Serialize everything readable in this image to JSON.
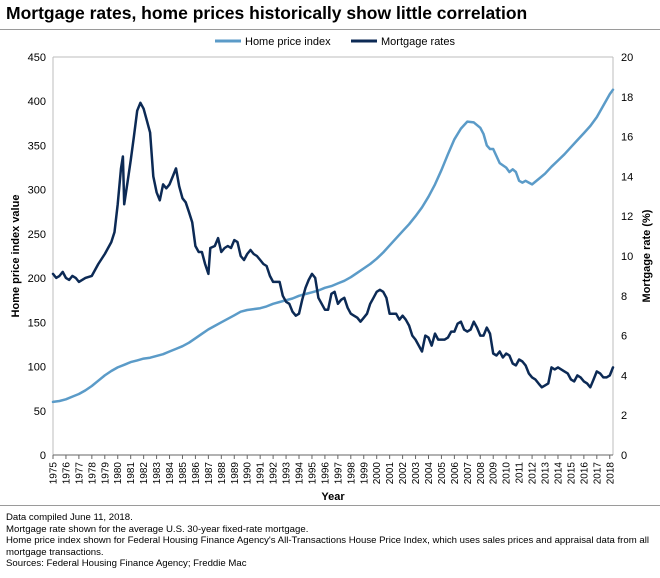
{
  "title": "Mortgage rates, home prices historically show little correlation",
  "notes": [
    "Data compiled June 11, 2018.",
    "Mortgage rate shown for the average U.S. 30-year fixed-rate mortgage.",
    "Home price index shown for Federal Housing Finance Agency's All-Transactions House Price Index, which uses sales prices and appraisal data from all mortgage transactions.",
    "Sources: Federal Housing Finance Agency; Freddie Mac"
  ],
  "colors": {
    "home_price": "#5b9bc8",
    "mortgage": "#0c2a55"
  },
  "chart_data": {
    "type": "line",
    "xlabel": "Year",
    "ylabel_left": "Home price index value",
    "ylabel_right": "Mortgage rate (%)",
    "ylim_left": [
      0,
      450
    ],
    "ylim_right": [
      0,
      20
    ],
    "xlim": [
      1975,
      2018.25
    ],
    "yticks_left": [
      0,
      50,
      100,
      150,
      200,
      250,
      300,
      350,
      400,
      450
    ],
    "yticks_right": [
      0,
      2,
      4,
      6,
      8,
      10,
      12,
      14,
      16,
      18,
      20
    ],
    "xticks": [
      "1975",
      "1976",
      "1977",
      "1978",
      "1979",
      "1980",
      "1981",
      "1982",
      "1983",
      "1984",
      "1985",
      "1986",
      "1987",
      "1988",
      "1989",
      "1990",
      "1991",
      "1992",
      "1993",
      "1994",
      "1995",
      "1996",
      "1997",
      "1998",
      "1999",
      "2000",
      "2001",
      "2002",
      "2003",
      "2004",
      "2005",
      "2006",
      "2007",
      "2008",
      "2009",
      "2010",
      "2011",
      "2012",
      "2013",
      "2014",
      "2015",
      "2016",
      "2017",
      "2018"
    ],
    "legend_position": "top",
    "series": [
      {
        "name": "Home price index",
        "axis": "left",
        "points": [
          [
            1975,
            60
          ],
          [
            1975.5,
            61
          ],
          [
            1976,
            63
          ],
          [
            1976.5,
            66
          ],
          [
            1977,
            69
          ],
          [
            1977.5,
            73
          ],
          [
            1978,
            78
          ],
          [
            1978.5,
            84
          ],
          [
            1979,
            90
          ],
          [
            1979.5,
            95
          ],
          [
            1980,
            99
          ],
          [
            1980.5,
            102
          ],
          [
            1981,
            105
          ],
          [
            1981.5,
            107
          ],
          [
            1982,
            109
          ],
          [
            1982.5,
            110
          ],
          [
            1983,
            112
          ],
          [
            1983.5,
            114
          ],
          [
            1984,
            117
          ],
          [
            1984.5,
            120
          ],
          [
            1985,
            123
          ],
          [
            1985.5,
            127
          ],
          [
            1986,
            132
          ],
          [
            1986.5,
            137
          ],
          [
            1987,
            142
          ],
          [
            1987.5,
            146
          ],
          [
            1988,
            150
          ],
          [
            1988.5,
            154
          ],
          [
            1989,
            158
          ],
          [
            1989.5,
            162
          ],
          [
            1990,
            164
          ],
          [
            1990.5,
            165
          ],
          [
            1991,
            166
          ],
          [
            1991.5,
            168
          ],
          [
            1992,
            171
          ],
          [
            1992.5,
            173
          ],
          [
            1993,
            175
          ],
          [
            1993.5,
            177
          ],
          [
            1994,
            180
          ],
          [
            1994.5,
            182
          ],
          [
            1995,
            184
          ],
          [
            1995.5,
            186
          ],
          [
            1996,
            189
          ],
          [
            1996.5,
            191
          ],
          [
            1997,
            194
          ],
          [
            1997.5,
            197
          ],
          [
            1998,
            201
          ],
          [
            1998.5,
            206
          ],
          [
            1999,
            211
          ],
          [
            1999.5,
            216
          ],
          [
            2000,
            222
          ],
          [
            2000.5,
            229
          ],
          [
            2001,
            237
          ],
          [
            2001.5,
            245
          ],
          [
            2002,
            253
          ],
          [
            2002.5,
            261
          ],
          [
            2003,
            270
          ],
          [
            2003.5,
            280
          ],
          [
            2004,
            292
          ],
          [
            2004.5,
            306
          ],
          [
            2005,
            322
          ],
          [
            2005.5,
            340
          ],
          [
            2006,
            357
          ],
          [
            2006.5,
            369
          ],
          [
            2007,
            377
          ],
          [
            2007.5,
            376
          ],
          [
            2008,
            370
          ],
          [
            2008.25,
            363
          ],
          [
            2008.5,
            350
          ],
          [
            2008.75,
            346
          ],
          [
            2009,
            346
          ],
          [
            2009.5,
            330
          ],
          [
            2010,
            325
          ],
          [
            2010.25,
            320
          ],
          [
            2010.5,
            323
          ],
          [
            2010.75,
            320
          ],
          [
            2011,
            310
          ],
          [
            2011.25,
            308
          ],
          [
            2011.5,
            310
          ],
          [
            2011.75,
            308
          ],
          [
            2012,
            306
          ],
          [
            2012.5,
            312
          ],
          [
            2013,
            318
          ],
          [
            2013.5,
            326
          ],
          [
            2014,
            333
          ],
          [
            2014.5,
            340
          ],
          [
            2015,
            348
          ],
          [
            2015.5,
            356
          ],
          [
            2016,
            364
          ],
          [
            2016.5,
            372
          ],
          [
            2017,
            382
          ],
          [
            2017.5,
            395
          ],
          [
            2018,
            408
          ],
          [
            2018.25,
            413
          ]
        ]
      },
      {
        "name": "Mortgage rates",
        "axis": "right",
        "points": [
          [
            1975,
            9.1
          ],
          [
            1975.25,
            8.9
          ],
          [
            1975.5,
            9.0
          ],
          [
            1975.75,
            9.2
          ],
          [
            1976,
            8.9
          ],
          [
            1976.25,
            8.8
          ],
          [
            1976.5,
            9.0
          ],
          [
            1976.75,
            8.9
          ],
          [
            1977,
            8.7
          ],
          [
            1977.5,
            8.9
          ],
          [
            1978,
            9.0
          ],
          [
            1978.5,
            9.6
          ],
          [
            1979,
            10.1
          ],
          [
            1979.5,
            10.7
          ],
          [
            1979.75,
            11.2
          ],
          [
            1980,
            12.6
          ],
          [
            1980.25,
            14.4
          ],
          [
            1980.4,
            15.0
          ],
          [
            1980.5,
            12.6
          ],
          [
            1980.75,
            13.7
          ],
          [
            1981,
            14.8
          ],
          [
            1981.25,
            16.0
          ],
          [
            1981.5,
            17.3
          ],
          [
            1981.75,
            17.7
          ],
          [
            1982,
            17.4
          ],
          [
            1982.25,
            16.8
          ],
          [
            1982.5,
            16.2
          ],
          [
            1982.75,
            14.0
          ],
          [
            1983,
            13.2
          ],
          [
            1983.25,
            12.8
          ],
          [
            1983.5,
            13.6
          ],
          [
            1983.75,
            13.4
          ],
          [
            1984,
            13.6
          ],
          [
            1984.25,
            14.0
          ],
          [
            1984.5,
            14.4
          ],
          [
            1984.75,
            13.5
          ],
          [
            1985,
            12.9
          ],
          [
            1985.25,
            12.7
          ],
          [
            1985.5,
            12.2
          ],
          [
            1985.75,
            11.7
          ],
          [
            1986,
            10.5
          ],
          [
            1986.25,
            10.2
          ],
          [
            1986.5,
            10.2
          ],
          [
            1986.75,
            9.6
          ],
          [
            1987,
            9.1
          ],
          [
            1987.15,
            10.4
          ],
          [
            1987.5,
            10.5
          ],
          [
            1987.75,
            10.9
          ],
          [
            1988,
            10.2
          ],
          [
            1988.25,
            10.4
          ],
          [
            1988.5,
            10.5
          ],
          [
            1988.75,
            10.4
          ],
          [
            1989,
            10.8
          ],
          [
            1989.25,
            10.7
          ],
          [
            1989.5,
            10.0
          ],
          [
            1989.75,
            9.8
          ],
          [
            1990,
            10.1
          ],
          [
            1990.25,
            10.3
          ],
          [
            1990.5,
            10.1
          ],
          [
            1990.75,
            10.0
          ],
          [
            1991,
            9.8
          ],
          [
            1991.25,
            9.6
          ],
          [
            1991.5,
            9.5
          ],
          [
            1991.75,
            9.0
          ],
          [
            1992,
            8.7
          ],
          [
            1992.5,
            8.7
          ],
          [
            1992.75,
            8.0
          ],
          [
            1993,
            7.7
          ],
          [
            1993.25,
            7.6
          ],
          [
            1993.5,
            7.2
          ],
          [
            1993.75,
            7.0
          ],
          [
            1994,
            7.1
          ],
          [
            1994.25,
            7.8
          ],
          [
            1994.5,
            8.4
          ],
          [
            1994.75,
            8.8
          ],
          [
            1995,
            9.1
          ],
          [
            1995.25,
            8.9
          ],
          [
            1995.5,
            7.9
          ],
          [
            1995.75,
            7.6
          ],
          [
            1996,
            7.3
          ],
          [
            1996.25,
            7.3
          ],
          [
            1996.5,
            8.1
          ],
          [
            1996.75,
            8.2
          ],
          [
            1997,
            7.6
          ],
          [
            1997.25,
            7.8
          ],
          [
            1997.5,
            7.9
          ],
          [
            1997.75,
            7.4
          ],
          [
            1998,
            7.1
          ],
          [
            1998.25,
            7.0
          ],
          [
            1998.5,
            6.9
          ],
          [
            1998.75,
            6.7
          ],
          [
            1999,
            6.9
          ],
          [
            1999.25,
            7.1
          ],
          [
            1999.5,
            7.6
          ],
          [
            1999.75,
            7.9
          ],
          [
            2000,
            8.2
          ],
          [
            2000.25,
            8.3
          ],
          [
            2000.5,
            8.2
          ],
          [
            2000.75,
            7.9
          ],
          [
            2001,
            7.1
          ],
          [
            2001.25,
            7.1
          ],
          [
            2001.5,
            7.1
          ],
          [
            2001.75,
            6.8
          ],
          [
            2002,
            7.0
          ],
          [
            2002.25,
            6.8
          ],
          [
            2002.5,
            6.5
          ],
          [
            2002.75,
            6.0
          ],
          [
            2003,
            5.8
          ],
          [
            2003.25,
            5.5
          ],
          [
            2003.5,
            5.2
          ],
          [
            2003.75,
            6.0
          ],
          [
            2004,
            5.9
          ],
          [
            2004.25,
            5.5
          ],
          [
            2004.5,
            6.1
          ],
          [
            2004.75,
            5.8
          ],
          [
            2005,
            5.8
          ],
          [
            2005.25,
            5.8
          ],
          [
            2005.5,
            5.9
          ],
          [
            2005.75,
            6.2
          ],
          [
            2006,
            6.2
          ],
          [
            2006.25,
            6.6
          ],
          [
            2006.5,
            6.7
          ],
          [
            2006.75,
            6.3
          ],
          [
            2007,
            6.2
          ],
          [
            2007.25,
            6.3
          ],
          [
            2007.5,
            6.7
          ],
          [
            2007.75,
            6.4
          ],
          [
            2008,
            6.0
          ],
          [
            2008.25,
            6.0
          ],
          [
            2008.5,
            6.4
          ],
          [
            2008.75,
            6.1
          ],
          [
            2009,
            5.1
          ],
          [
            2009.25,
            5.0
          ],
          [
            2009.5,
            5.2
          ],
          [
            2009.75,
            4.9
          ],
          [
            2010,
            5.1
          ],
          [
            2010.25,
            5.0
          ],
          [
            2010.5,
            4.6
          ],
          [
            2010.75,
            4.5
          ],
          [
            2011,
            4.8
          ],
          [
            2011.25,
            4.7
          ],
          [
            2011.5,
            4.5
          ],
          [
            2011.75,
            4.1
          ],
          [
            2012,
            3.9
          ],
          [
            2012.25,
            3.8
          ],
          [
            2012.5,
            3.6
          ],
          [
            2012.75,
            3.4
          ],
          [
            2013,
            3.5
          ],
          [
            2013.25,
            3.6
          ],
          [
            2013.5,
            4.4
          ],
          [
            2013.75,
            4.3
          ],
          [
            2014,
            4.4
          ],
          [
            2014.25,
            4.3
          ],
          [
            2014.5,
            4.2
          ],
          [
            2014.75,
            4.1
          ],
          [
            2015,
            3.8
          ],
          [
            2015.25,
            3.7
          ],
          [
            2015.5,
            4.0
          ],
          [
            2015.75,
            3.9
          ],
          [
            2016,
            3.7
          ],
          [
            2016.25,
            3.6
          ],
          [
            2016.5,
            3.4
          ],
          [
            2016.75,
            3.8
          ],
          [
            2017,
            4.2
          ],
          [
            2017.25,
            4.1
          ],
          [
            2017.5,
            3.9
          ],
          [
            2017.75,
            3.9
          ],
          [
            2018,
            4.0
          ],
          [
            2018.25,
            4.4
          ]
        ]
      }
    ]
  }
}
